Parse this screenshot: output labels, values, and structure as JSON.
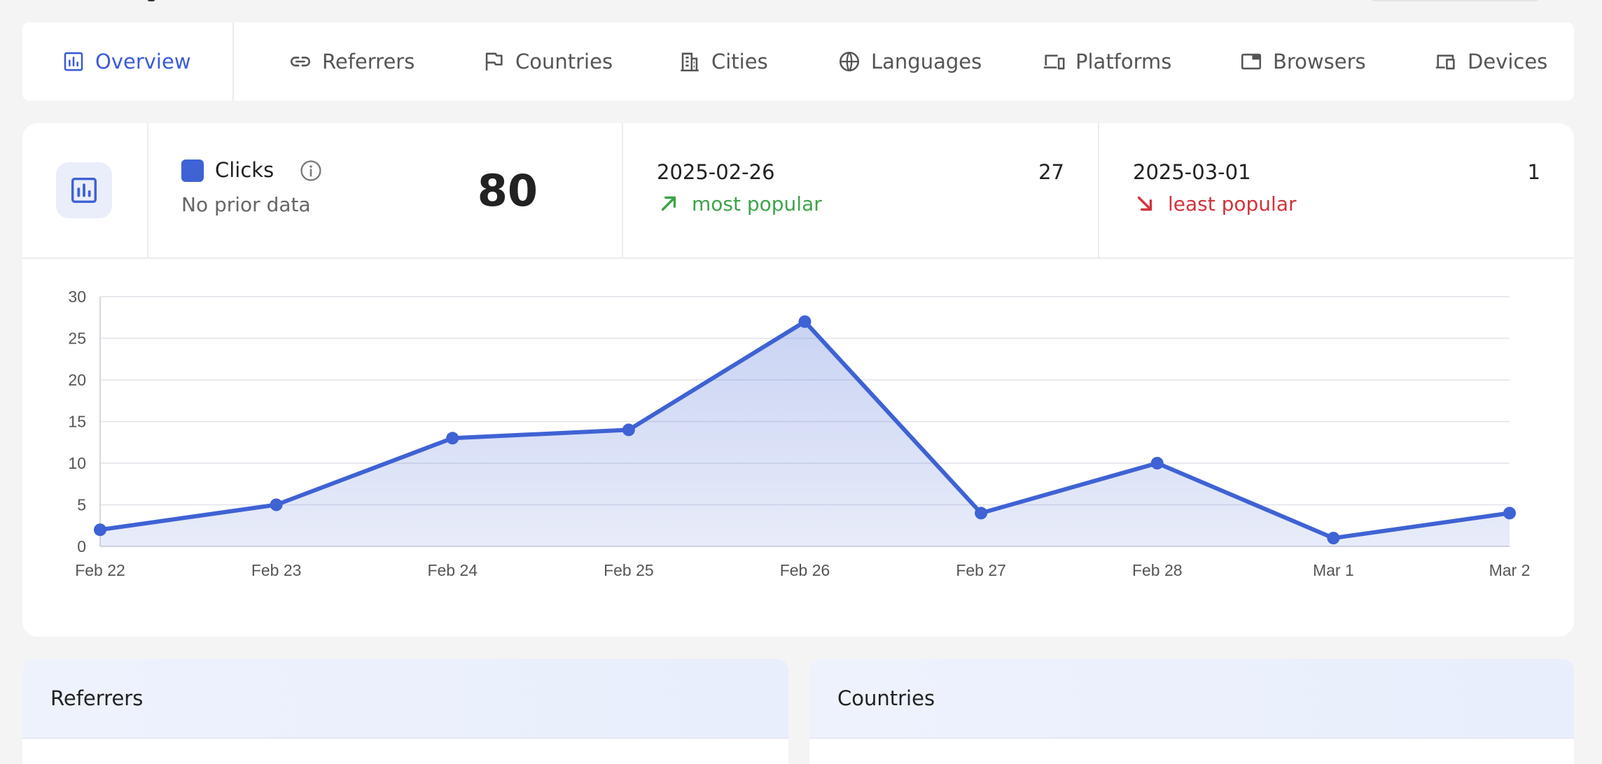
{
  "tabs": [
    {
      "label": "Overview",
      "icon": "bar-chart-icon",
      "active": true
    },
    {
      "label": "Referrers",
      "icon": "link-icon"
    },
    {
      "label": "Countries",
      "icon": "flag-icon"
    },
    {
      "label": "Cities",
      "icon": "building-icon"
    },
    {
      "label": "Languages",
      "icon": "globe-icon"
    },
    {
      "label": "Platforms",
      "icon": "devices-icon"
    },
    {
      "label": "Browsers",
      "icon": "browser-window-icon"
    },
    {
      "label": "Devices",
      "icon": "device-icon"
    }
  ],
  "stats": {
    "metric_label": "Clicks",
    "metric_color": "#3f62d4",
    "prior_text": "No prior data",
    "total": "80",
    "most_popular": {
      "date": "2025-02-26",
      "value": "27",
      "note": "most popular",
      "color": "#3da44a"
    },
    "least_popular": {
      "date": "2025-03-01",
      "value": "1",
      "note": "least popular",
      "color": "#d2333a"
    }
  },
  "chart_data": {
    "type": "area",
    "categories": [
      "Feb 22",
      "Feb 23",
      "Feb 24",
      "Feb 25",
      "Feb 26",
      "Feb 27",
      "Feb 28",
      "Mar 1",
      "Mar 2"
    ],
    "series": [
      {
        "name": "Clicks",
        "values": [
          2,
          5,
          13,
          14,
          27,
          4,
          10,
          1,
          4
        ]
      }
    ],
    "yticks": [
      0,
      5,
      10,
      15,
      20,
      25,
      30
    ],
    "ylim": [
      0,
      30
    ],
    "grid": true,
    "line_color": "#3f62d4"
  },
  "panels": {
    "referrers_title": "Referrers",
    "countries_title": "Countries"
  }
}
